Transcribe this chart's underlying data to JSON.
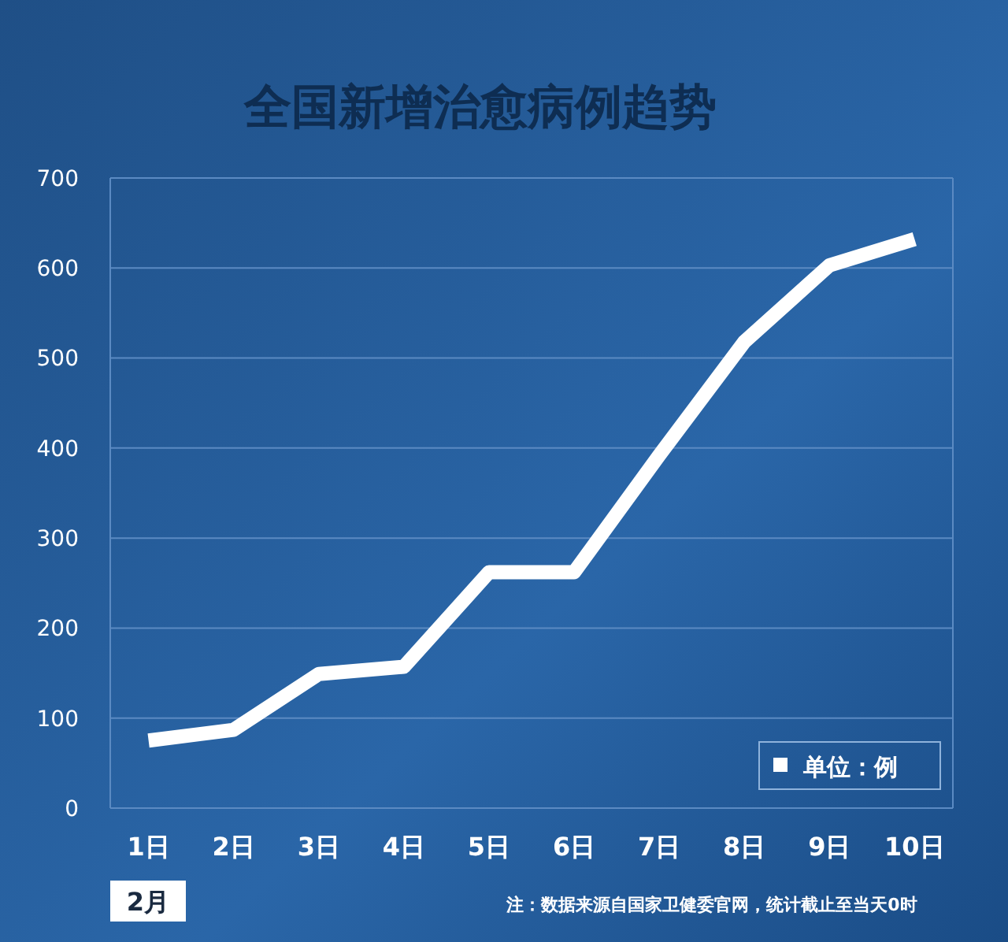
{
  "chart_data": {
    "type": "line",
    "title": "全国新增治愈病例趋势",
    "xlabel": "2月",
    "categories": [
      "1日",
      "2日",
      "3日",
      "4日",
      "5日",
      "6日",
      "7日",
      "8日",
      "9日",
      "10日"
    ],
    "series": [
      {
        "color": "#ffffff",
        "values": [
          75,
          87,
          149,
          157,
          262,
          262,
          392,
          518,
          603,
          632
        ]
      }
    ],
    "ylim": [
      0,
      700
    ],
    "yticks": [
      0,
      100,
      200,
      300,
      400,
      500,
      600,
      700
    ],
    "grid": "y",
    "marker": "none",
    "line_style": "solid",
    "annotations": [
      "单位：例",
      "注：数据来源自国家卫健委官网，统计截止至当天0时"
    ]
  }
}
